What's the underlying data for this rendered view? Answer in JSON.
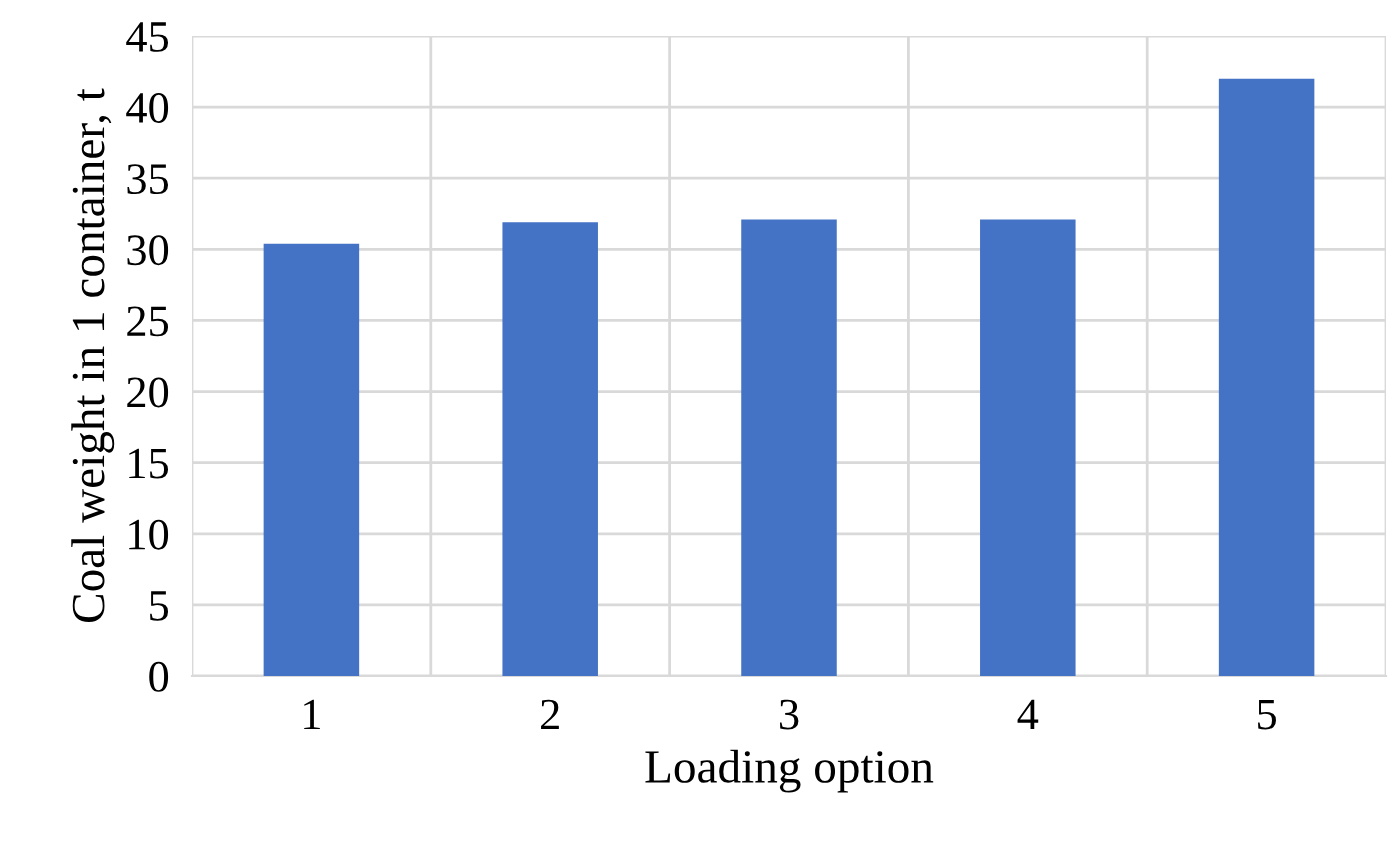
{
  "chart_data": {
    "type": "bar",
    "xlabel": "Loading option",
    "ylabel": "Coal weight in 1 container, t",
    "categories": [
      "1",
      "2",
      "3",
      "4",
      "5"
    ],
    "values": [
      30.4,
      31.9,
      32.1,
      32.1,
      42
    ],
    "color": "#4472c4",
    "ylim": [
      0,
      45
    ],
    "yticks": [
      0,
      5,
      10,
      15,
      20,
      25,
      30,
      35,
      40,
      45
    ],
    "grid": true
  }
}
